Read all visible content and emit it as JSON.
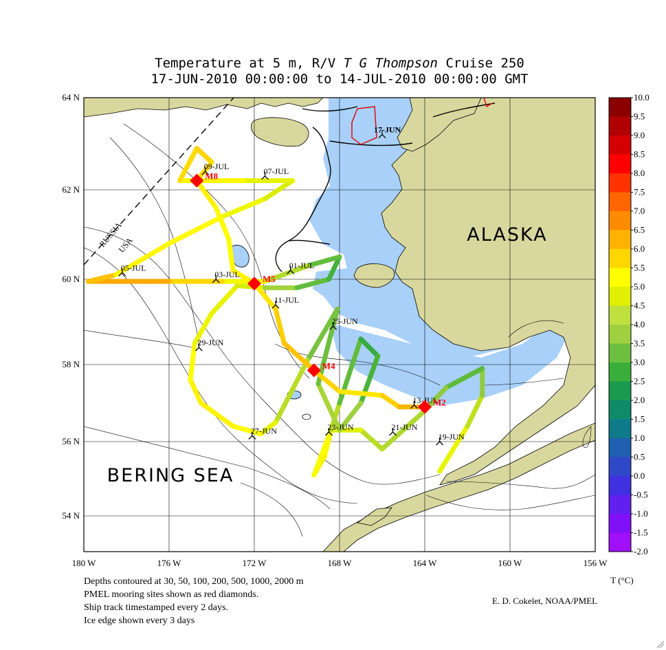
{
  "title": {
    "line1_pre": "Temperature at 5 m, R/V ",
    "line1_ship": "T G",
    "line1_ship2": "Thompson",
    "line1_post": " Cruise 250",
    "line2": "17-JUN-2010 00:00:00 to 14-JUL-2010 00:00:00 GMT"
  },
  "lat_labels": [
    "64 N",
    "62 N",
    "60 N",
    "58 N",
    "56 N",
    "54 N"
  ],
  "lon_labels": [
    "180 W",
    "176 W",
    "172 W",
    "168 W",
    "164 W",
    "160 W",
    "156 W"
  ],
  "regions": {
    "alaska": "ALASKA",
    "bering": "BERING SEA",
    "russia": "RUSSIA",
    "usa": "USA"
  },
  "moorings": [
    {
      "label": "M8",
      "lon": -174.7,
      "lat": 62.2
    },
    {
      "label": "M5",
      "lon": -172.0,
      "lat": 59.9
    },
    {
      "label": "M4",
      "lon": -169.2,
      "lat": 57.85
    },
    {
      "label": "M2",
      "lon": -164.0,
      "lat": 56.9
    }
  ],
  "timestamps": [
    {
      "label": "17-JUN",
      "lon": -166.0,
      "lat": 63.2
    },
    {
      "label": "19-JUN",
      "lon": -163.3,
      "lat": 56.0
    },
    {
      "label": "21-JUN",
      "lon": -165.5,
      "lat": 56.25
    },
    {
      "label": "23-JUN",
      "lon": -168.5,
      "lat": 56.25
    },
    {
      "label": "25-JUN",
      "lon": -168.3,
      "lat": 58.9
    },
    {
      "label": "27-JUN",
      "lon": -172.1,
      "lat": 56.15
    },
    {
      "label": "29-JUN",
      "lon": -174.6,
      "lat": 58.4
    },
    {
      "label": "01-JUL",
      "lon": -170.3,
      "lat": 60.2
    },
    {
      "label": "03-JUL",
      "lon": -173.8,
      "lat": 60.0
    },
    {
      "label": "05-JUL",
      "lon": -178.2,
      "lat": 60.15
    },
    {
      "label": "07-JUL",
      "lon": -171.5,
      "lat": 62.3
    },
    {
      "label": "09-JUL",
      "lon": -174.3,
      "lat": 62.4
    },
    {
      "label": "11-JUL",
      "lon": -171.0,
      "lat": 59.4
    },
    {
      "label": "13-JUL",
      "lon": -164.5,
      "lat": 56.95
    }
  ],
  "track": [
    {
      "lon": -163.3,
      "lat": 55.2,
      "t": 5.5
    },
    {
      "lon": -162.0,
      "lat": 56.4,
      "t": 4.8
    },
    {
      "lon": -161.3,
      "lat": 57.2,
      "t": 4.2
    },
    {
      "lon": -161.3,
      "lat": 57.9,
      "t": 3.5
    },
    {
      "lon": -163.0,
      "lat": 57.4,
      "t": 3.2
    },
    {
      "lon": -164.0,
      "lat": 56.8,
      "t": 4.5
    },
    {
      "lon": -166.0,
      "lat": 55.8,
      "t": 4.0
    },
    {
      "lon": -167.0,
      "lat": 56.3,
      "t": 4.8
    },
    {
      "lon": -168.4,
      "lat": 56.3,
      "t": 5.2
    },
    {
      "lon": -168.7,
      "lat": 55.6,
      "t": 5.6
    },
    {
      "lon": -169.2,
      "lat": 55.1,
      "t": 5.8
    },
    {
      "lon": -168.4,
      "lat": 56.3,
      "t": 5.0
    },
    {
      "lon": -168.0,
      "lat": 57.0,
      "t": 3.8
    },
    {
      "lon": -167.0,
      "lat": 58.6,
      "t": 3.0
    },
    {
      "lon": -166.2,
      "lat": 58.2,
      "t": 2.8
    },
    {
      "lon": -167.0,
      "lat": 57.0,
      "t": 3.5
    },
    {
      "lon": -168.0,
      "lat": 56.3,
      "t": 4.5
    },
    {
      "lon": -169.0,
      "lat": 57.5,
      "t": 3.8
    },
    {
      "lon": -168.1,
      "lat": 59.3,
      "t": 3.2
    },
    {
      "lon": -169.5,
      "lat": 58.1,
      "t": 4.0
    },
    {
      "lon": -171.0,
      "lat": 56.5,
      "t": 4.8
    },
    {
      "lon": -171.7,
      "lat": 56.2,
      "t": 5.4
    },
    {
      "lon": -173.0,
      "lat": 56.4,
      "t": 5.6
    },
    {
      "lon": -174.5,
      "lat": 57.0,
      "t": 5.7
    },
    {
      "lon": -175.0,
      "lat": 57.6,
      "t": 5.6
    },
    {
      "lon": -174.8,
      "lat": 58.5,
      "t": 5.4
    },
    {
      "lon": -174.0,
      "lat": 59.2,
      "t": 5.0
    },
    {
      "lon": -172.8,
      "lat": 59.85,
      "t": 5.2
    },
    {
      "lon": -171.5,
      "lat": 59.8,
      "t": 4.5
    },
    {
      "lon": -170.0,
      "lat": 59.8,
      "t": 3.6
    },
    {
      "lon": -168.5,
      "lat": 60.0,
      "t": 3.2
    },
    {
      "lon": -168.0,
      "lat": 60.5,
      "t": 3.0
    },
    {
      "lon": -169.5,
      "lat": 60.3,
      "t": 3.8
    },
    {
      "lon": -171.5,
      "lat": 59.95,
      "t": 4.8
    },
    {
      "lon": -173.5,
      "lat": 59.95,
      "t": 5.8
    },
    {
      "lon": -176.0,
      "lat": 59.95,
      "t": 6.2
    },
    {
      "lon": -179.8,
      "lat": 59.95,
      "t": 7.0
    },
    {
      "lon": -178.5,
      "lat": 60.1,
      "t": 5.6
    },
    {
      "lon": -176.0,
      "lat": 60.8,
      "t": 5.6
    },
    {
      "lon": -173.5,
      "lat": 61.4,
      "t": 5.5
    },
    {
      "lon": -171.5,
      "lat": 61.8,
      "t": 5.0
    },
    {
      "lon": -170.2,
      "lat": 62.2,
      "t": 4.8
    },
    {
      "lon": -172.5,
      "lat": 62.2,
      "t": 5.4
    },
    {
      "lon": -175.5,
      "lat": 62.2,
      "t": 5.8
    },
    {
      "lon": -174.7,
      "lat": 62.9,
      "t": 6.1
    },
    {
      "lon": -174.0,
      "lat": 62.6,
      "t": 6.0
    },
    {
      "lon": -174.7,
      "lat": 62.2,
      "t": 5.8
    },
    {
      "lon": -173.8,
      "lat": 61.6,
      "t": 5.6
    },
    {
      "lon": -173.2,
      "lat": 60.9,
      "t": 5.5
    },
    {
      "lon": -173.0,
      "lat": 60.2,
      "t": 5.6
    },
    {
      "lon": -172.0,
      "lat": 59.9,
      "t": 5.7
    },
    {
      "lon": -171.0,
      "lat": 59.3,
      "t": 5.9
    },
    {
      "lon": -170.6,
      "lat": 58.5,
      "t": 6.3
    },
    {
      "lon": -169.2,
      "lat": 57.85,
      "t": 6.3
    },
    {
      "lon": -168.0,
      "lat": 57.3,
      "t": 5.8
    },
    {
      "lon": -166.0,
      "lat": 57.2,
      "t": 5.8
    },
    {
      "lon": -165.2,
      "lat": 56.9,
      "t": 6.4
    },
    {
      "lon": -164.0,
      "lat": 56.9,
      "t": 6.5
    }
  ],
  "colorbar": {
    "labels": [
      "10.0",
      "9.5",
      "9.0",
      "8.5",
      "8.0",
      "7.5",
      "7.0",
      "6.5",
      "6.0",
      "5.5",
      "5.0",
      "4.5",
      "4.0",
      "3.5",
      "3.0",
      "2.5",
      "2.0",
      "1.5",
      "1.0",
      "0.5",
      "0.0",
      "-0.5",
      "-1.0",
      "-1.5",
      "-2.0"
    ],
    "colors": [
      "#8b0000",
      "#b00000",
      "#d40000",
      "#ff0000",
      "#ff3300",
      "#ff6600",
      "#ff8c00",
      "#ffb300",
      "#ffd700",
      "#ffff00",
      "#e0f000",
      "#c0e040",
      "#9fd040",
      "#6cc040",
      "#3aae3a",
      "#1a9a4e",
      "#0e8c6a",
      "#0f7a8a",
      "#2060b0",
      "#2f48c8",
      "#4030e0",
      "#6020f0",
      "#8010f8",
      "#a010fa",
      "#e000ff"
    ],
    "unit": "T (°C)"
  },
  "notes": [
    "Depths contoured at 30, 50, 100, 200, 500, 1000, 2000 m",
    "PMEL mooring sites shown as red diamonds.",
    "Ship track timestamped every 2 days.",
    "Ice edge shown every 3 days"
  ],
  "credit": "E. D. Cokelet, NOAA/PMEL",
  "palette": {
    "land": "#d8d89e",
    "shelf_water": "#a8d0f8",
    "mooring": "#ff0000"
  }
}
